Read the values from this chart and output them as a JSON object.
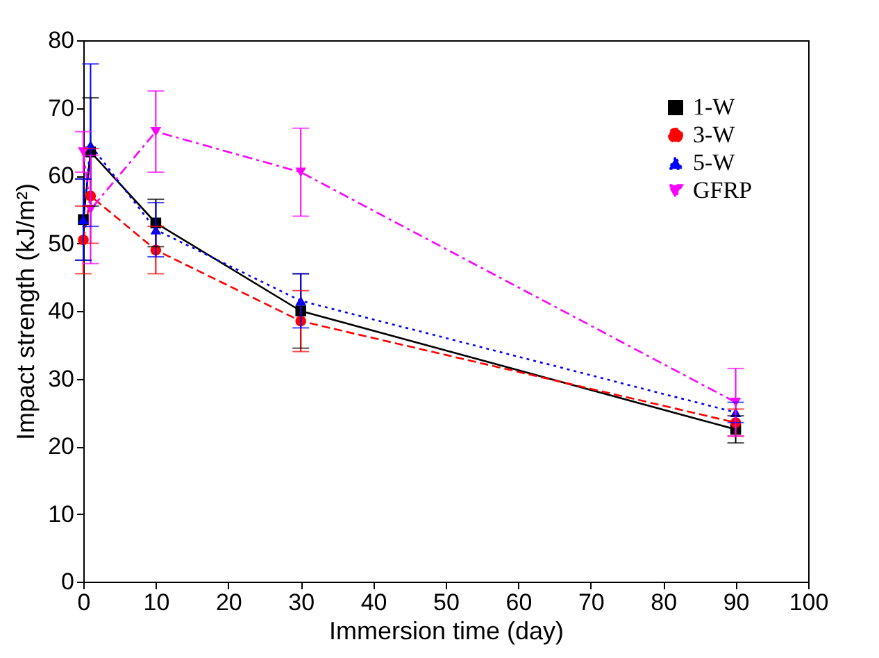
{
  "chart_data": {
    "type": "line",
    "xlabel": "Immersion time (day)",
    "ylabel": "Impact strength (kJ/m²)",
    "x": [
      0,
      1,
      10,
      30,
      90
    ],
    "xlim": [
      0,
      100
    ],
    "xticks": [
      0,
      10,
      20,
      30,
      40,
      50,
      60,
      70,
      80,
      90,
      100
    ],
    "ylim": [
      0,
      80
    ],
    "yticks": [
      0,
      10,
      20,
      30,
      40,
      50,
      60,
      70,
      80
    ],
    "grid": false,
    "legend": "top right",
    "series": [
      {
        "name": "1-W",
        "color": "#000000",
        "marker": "square",
        "line_style": "solid",
        "values": [
          53.5,
          63.5,
          53,
          40,
          22.5
        ],
        "errors": [
          6,
          8,
          3.5,
          5.5,
          2
        ]
      },
      {
        "name": "3-W",
        "color": "#ff0000",
        "marker": "circle",
        "line_style": "dashed",
        "values": [
          50.5,
          57,
          49,
          38.5,
          23.5
        ],
        "errors": [
          5,
          7,
          3.5,
          4.5,
          2
        ]
      },
      {
        "name": "5-W",
        "color": "#0000ff",
        "marker": "triangle",
        "line_style": "dotted",
        "values": [
          53.5,
          64.5,
          52,
          41.5,
          25
        ],
        "errors": [
          6,
          12,
          4,
          4,
          1.5
        ]
      },
      {
        "name": "GFRP",
        "color": "#ff00ff",
        "marker": "triangle-down",
        "line_style": "dashdot",
        "values": [
          63.5,
          55,
          66.5,
          60.5,
          26.5
        ],
        "errors": [
          3,
          8,
          6,
          6.5,
          5
        ]
      }
    ]
  }
}
